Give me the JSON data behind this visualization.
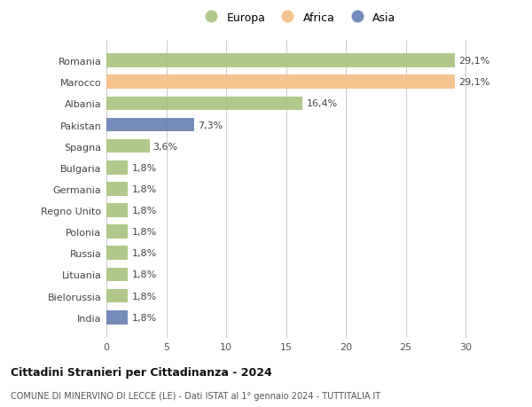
{
  "categories": [
    "Romania",
    "Marocco",
    "Albania",
    "Pakistan",
    "Spagna",
    "Bulgaria",
    "Germania",
    "Regno Unito",
    "Polonia",
    "Russia",
    "Lituania",
    "Bielorussia",
    "India"
  ],
  "values": [
    29.1,
    29.1,
    16.4,
    7.3,
    3.6,
    1.8,
    1.8,
    1.8,
    1.8,
    1.8,
    1.8,
    1.8,
    1.8
  ],
  "labels": [
    "29,1%",
    "29,1%",
    "16,4%",
    "7,3%",
    "3,6%",
    "1,8%",
    "1,8%",
    "1,8%",
    "1,8%",
    "1,8%",
    "1,8%",
    "1,8%",
    "1,8%"
  ],
  "continent": [
    "Europa",
    "Africa",
    "Europa",
    "Asia",
    "Europa",
    "Europa",
    "Europa",
    "Europa",
    "Europa",
    "Europa",
    "Europa",
    "Europa",
    "Asia"
  ],
  "colors": {
    "Europa": "#a8c47e",
    "Africa": "#f5bc84",
    "Asia": "#6680b3"
  },
  "legend_labels": [
    "Europa",
    "Africa",
    "Asia"
  ],
  "xlim": [
    0,
    32
  ],
  "xticks": [
    0,
    5,
    10,
    15,
    20,
    25,
    30
  ],
  "title1": "Cittadini Stranieri per Cittadinanza - 2024",
  "title2": "COMUNE DI MINERVINO DI LECCE (LE) - Dati ISTAT al 1° gennaio 2024 - TUTTITALIA.IT",
  "background_color": "#ffffff",
  "bar_height": 0.65,
  "grid_color": "#cccccc",
  "label_fontsize": 8,
  "tick_fontsize": 8,
  "legend_fontsize": 9
}
